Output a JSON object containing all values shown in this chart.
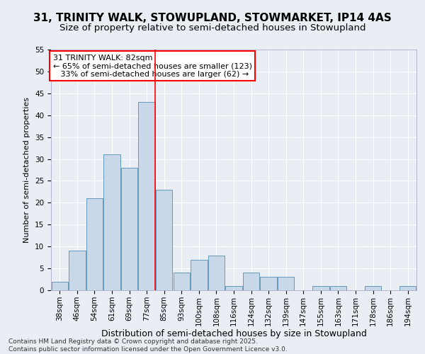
{
  "title": "31, TRINITY WALK, STOWUPLAND, STOWMARKET, IP14 4AS",
  "subtitle": "Size of property relative to semi-detached houses in Stowupland",
  "xlabel": "Distribution of semi-detached houses by size in Stowupland",
  "ylabel": "Number of semi-detached properties",
  "categories": [
    "38sqm",
    "46sqm",
    "54sqm",
    "61sqm",
    "69sqm",
    "77sqm",
    "85sqm",
    "93sqm",
    "100sqm",
    "108sqm",
    "116sqm",
    "124sqm",
    "132sqm",
    "139sqm",
    "147sqm",
    "155sqm",
    "163sqm",
    "171sqm",
    "178sqm",
    "186sqm",
    "194sqm"
  ],
  "values": [
    2,
    9,
    21,
    31,
    28,
    43,
    23,
    4,
    7,
    8,
    1,
    4,
    3,
    3,
    0,
    1,
    1,
    0,
    1,
    0,
    1
  ],
  "bar_color": "#c8d8e8",
  "bar_edge_color": "#6699bb",
  "vline_color": "red",
  "vline_x_index": 6,
  "annotation_line1": "31 TRINITY WALK: 82sqm",
  "annotation_line2": "← 65% of semi-detached houses are smaller (123)",
  "annotation_line3": "   33% of semi-detached houses are larger (62) →",
  "annotation_box_color": "white",
  "annotation_box_edge": "red",
  "ylim": [
    0,
    55
  ],
  "yticks": [
    0,
    5,
    10,
    15,
    20,
    25,
    30,
    35,
    40,
    45,
    50,
    55
  ],
  "bg_color": "#e8eef4",
  "grid_color": "white",
  "footer": "Contains HM Land Registry data © Crown copyright and database right 2025.\nContains public sector information licensed under the Open Government Licence v3.0.",
  "title_fontsize": 11,
  "subtitle_fontsize": 9.5,
  "xlabel_fontsize": 9,
  "ylabel_fontsize": 8,
  "tick_fontsize": 7.5,
  "annotation_fontsize": 8,
  "footer_fontsize": 6.5
}
